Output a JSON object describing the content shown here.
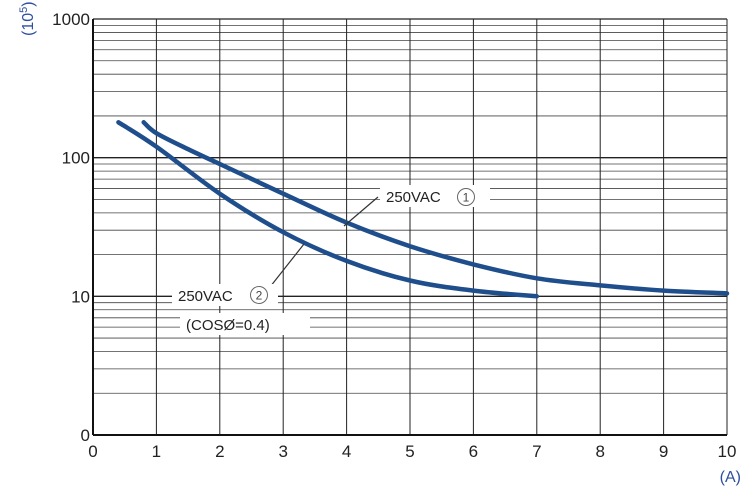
{
  "chart_data": {
    "type": "line",
    "x_unit": "(A)",
    "y_unit": "(10",
    "y_unit_exp": "5",
    "y_unit_close": ")",
    "xlim": [
      0,
      10
    ],
    "ylim": [
      1,
      1000
    ],
    "y_scale": "log",
    "x_ticks": [
      "0",
      "1",
      "2",
      "3",
      "4",
      "5",
      "6",
      "7",
      "8",
      "9",
      "10"
    ],
    "y_ticks": [
      {
        "value": 1,
        "label": "0"
      },
      {
        "value": 10,
        "label": "10"
      },
      {
        "value": 100,
        "label": "100"
      },
      {
        "value": 1000,
        "label": "1000"
      }
    ],
    "grid": true,
    "series": [
      {
        "name": "250VAC ①",
        "color": "#1f4e8c",
        "x": [
          0.8,
          1,
          1.5,
          2,
          3,
          4,
          5,
          6,
          7,
          8,
          9,
          10
        ],
        "y": [
          180,
          150,
          115,
          90,
          55,
          34,
          23,
          17,
          13.5,
          12,
          11,
          10.5
        ]
      },
      {
        "name": "250VAC ②",
        "color": "#1f4e8c",
        "x": [
          0.4,
          1,
          2,
          3,
          4,
          5,
          6,
          7
        ],
        "y": [
          180,
          120,
          55,
          29,
          18,
          13,
          11,
          10
        ]
      }
    ],
    "annotations": [
      {
        "text": "250VAC",
        "circled": "1"
      },
      {
        "text": "250VAC",
        "circled": "2"
      },
      {
        "text": "(COSØ=0.4)"
      }
    ]
  }
}
